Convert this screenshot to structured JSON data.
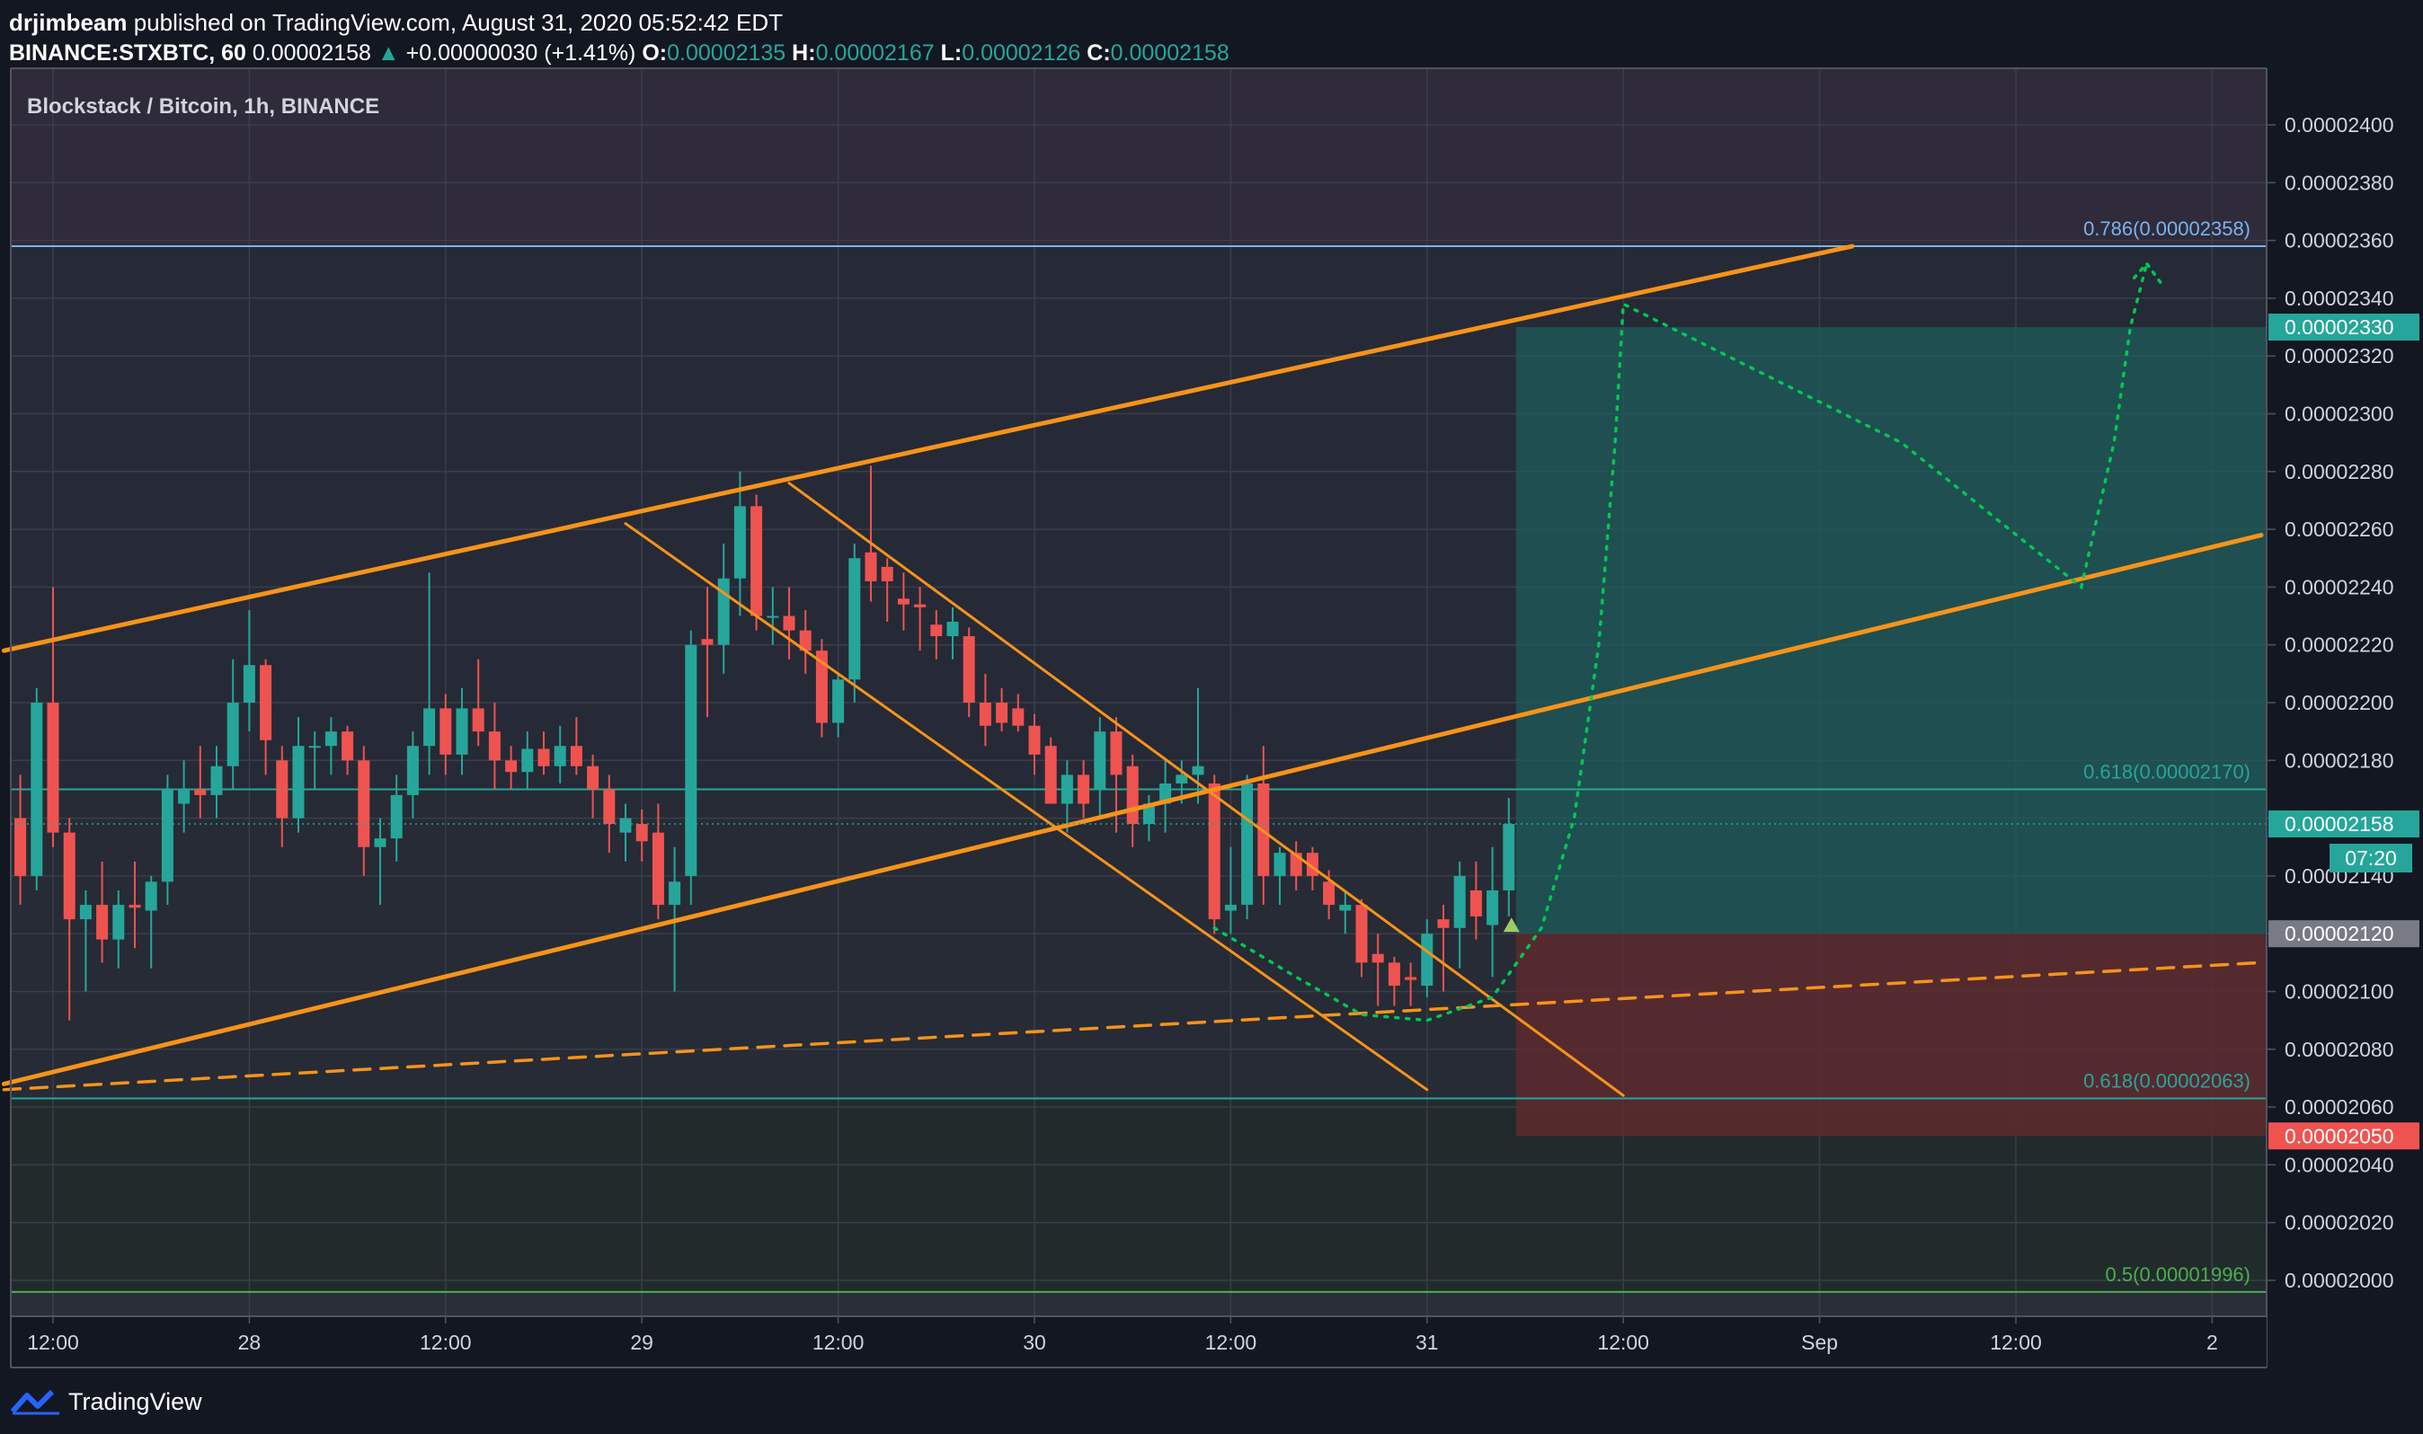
{
  "header": {
    "author": "drjimbeam",
    "published": "published on TradingView.com, August 31, 2020 05:52:42 EDT",
    "symbol": "BINANCE:STXBTC, 60",
    "last": "0.00002158",
    "change_arrow": "▲",
    "change": "+0.00000030 (+1.41%)",
    "o_label": "O:",
    "o": "0.00002135",
    "h_label": "H:",
    "h": "0.00002167",
    "l_label": "L:",
    "l": "0.00002126",
    "c_label": "C:",
    "c": "0.00002158"
  },
  "footer": {
    "brand": "TradingView"
  },
  "colors": {
    "background": "#131722",
    "panel": "#1e222d",
    "up": "#26a69a",
    "down": "#ef5350",
    "trendline": "#f7931a",
    "target": "#00c853",
    "fib_blue": "#7ab3ef",
    "fib_teal": "#26a69a",
    "fib_green": "#4caf50",
    "profit_zone": "#1e5c5a",
    "loss_zone": "#5d2a2e"
  },
  "chart_data": {
    "type": "candlestick",
    "title": "Blockstack / Bitcoin, 1h, BINANCE",
    "ylim": [
      1.992e-05,
      2.418e-05
    ],
    "y_ticks": [
      "0.00002400",
      "0.00002380",
      "0.00002360",
      "0.00002340",
      "0.00002320",
      "0.00002300",
      "0.00002280",
      "0.00002260",
      "0.00002240",
      "0.00002220",
      "0.00002200",
      "0.00002180",
      "0.00002160",
      "0.00002140",
      "0.00002120",
      "0.00002100",
      "0.00002080",
      "0.00002060",
      "0.00002040",
      "0.00002020",
      "0.00002000"
    ],
    "x_ticks": [
      {
        "label": "12:00",
        "h": 0
      },
      {
        "label": "28",
        "h": 12
      },
      {
        "label": "12:00",
        "h": 24
      },
      {
        "label": "29",
        "h": 36
      },
      {
        "label": "12:00",
        "h": 48
      },
      {
        "label": "30",
        "h": 60
      },
      {
        "label": "12:00",
        "h": 72
      },
      {
        "label": "31",
        "h": 84
      },
      {
        "label": "12:00",
        "h": 96
      },
      {
        "label": "Sep",
        "h": 108
      },
      {
        "label": "12:00",
        "h": 120
      },
      {
        "label": "2",
        "h": 132
      }
    ],
    "x_axis": "hours since 27 Aug 12:00",
    "candles": [
      {
        "h": -2,
        "o": 2.16e-05,
        "hi": 2.175e-05,
        "lo": 2.13e-05,
        "c": 2.14e-05
      },
      {
        "h": -1,
        "o": 2.14e-05,
        "hi": 2.205e-05,
        "lo": 2.135e-05,
        "c": 2.2e-05
      },
      {
        "h": 0,
        "o": 2.2e-05,
        "hi": 2.24e-05,
        "lo": 2.15e-05,
        "c": 2.155e-05
      },
      {
        "h": 1,
        "o": 2.155e-05,
        "hi": 2.16e-05,
        "lo": 2.09e-05,
        "c": 2.125e-05
      },
      {
        "h": 2,
        "o": 2.125e-05,
        "hi": 2.135e-05,
        "lo": 2.1e-05,
        "c": 2.13e-05
      },
      {
        "h": 3,
        "o": 2.13e-05,
        "hi": 2.145e-05,
        "lo": 2.11e-05,
        "c": 2.118e-05
      },
      {
        "h": 4,
        "o": 2.118e-05,
        "hi": 2.135e-05,
        "lo": 2.108e-05,
        "c": 2.13e-05
      },
      {
        "h": 5,
        "o": 2.13e-05,
        "hi": 2.145e-05,
        "lo": 2.115e-05,
        "c": 2.129e-05
      },
      {
        "h": 6,
        "o": 2.128e-05,
        "hi": 2.14e-05,
        "lo": 2.108e-05,
        "c": 2.138e-05
      },
      {
        "h": 7,
        "o": 2.138e-05,
        "hi": 2.175e-05,
        "lo": 2.13e-05,
        "c": 2.17e-05
      },
      {
        "h": 8,
        "o": 2.165e-05,
        "hi": 2.18e-05,
        "lo": 2.155e-05,
        "c": 2.17e-05
      },
      {
        "h": 9,
        "o": 2.17e-05,
        "hi": 2.185e-05,
        "lo": 2.16e-05,
        "c": 2.168e-05
      },
      {
        "h": 10,
        "o": 2.168e-05,
        "hi": 2.185e-05,
        "lo": 2.16e-05,
        "c": 2.178e-05
      },
      {
        "h": 11,
        "o": 2.178e-05,
        "hi": 2.215e-05,
        "lo": 2.17e-05,
        "c": 2.2e-05
      },
      {
        "h": 12,
        "o": 2.2e-05,
        "hi": 2.232e-05,
        "lo": 2.19e-05,
        "c": 2.213e-05
      },
      {
        "h": 13,
        "o": 2.213e-05,
        "hi": 2.215e-05,
        "lo": 2.175e-05,
        "c": 2.187e-05
      },
      {
        "h": 14,
        "o": 2.18e-05,
        "hi": 2.185e-05,
        "lo": 2.15e-05,
        "c": 2.16e-05
      },
      {
        "h": 15,
        "o": 2.16e-05,
        "hi": 2.195e-05,
        "lo": 2.155e-05,
        "c": 2.185e-05
      },
      {
        "h": 16,
        "o": 2.185e-05,
        "hi": 2.19e-05,
        "lo": 2.17e-05,
        "c": 2.185e-05
      },
      {
        "h": 17,
        "o": 2.185e-05,
        "hi": 2.195e-05,
        "lo": 2.175e-05,
        "c": 2.19e-05
      },
      {
        "h": 18,
        "o": 2.19e-05,
        "hi": 2.192e-05,
        "lo": 2.175e-05,
        "c": 2.18e-05
      },
      {
        "h": 19,
        "o": 2.18e-05,
        "hi": 2.185e-05,
        "lo": 2.14e-05,
        "c": 2.15e-05
      },
      {
        "h": 20,
        "o": 2.15e-05,
        "hi": 2.16e-05,
        "lo": 2.13e-05,
        "c": 2.153e-05
      },
      {
        "h": 21,
        "o": 2.153e-05,
        "hi": 2.175e-05,
        "lo": 2.145e-05,
        "c": 2.168e-05
      },
      {
        "h": 22,
        "o": 2.168e-05,
        "hi": 2.19e-05,
        "lo": 2.16e-05,
        "c": 2.185e-05
      },
      {
        "h": 23,
        "o": 2.185e-05,
        "hi": 2.245e-05,
        "lo": 2.175e-05,
        "c": 2.198e-05
      },
      {
        "h": 24,
        "o": 2.198e-05,
        "hi": 2.203e-05,
        "lo": 2.175e-05,
        "c": 2.182e-05
      },
      {
        "h": 25,
        "o": 2.182e-05,
        "hi": 2.205e-05,
        "lo": 2.175e-05,
        "c": 2.198e-05
      },
      {
        "h": 26,
        "o": 2.198e-05,
        "hi": 2.215e-05,
        "lo": 2.185e-05,
        "c": 2.19e-05
      },
      {
        "h": 27,
        "o": 2.19e-05,
        "hi": 2.2e-05,
        "lo": 2.17e-05,
        "c": 2.18e-05
      },
      {
        "h": 28,
        "o": 2.18e-05,
        "hi": 2.185e-05,
        "lo": 2.17e-05,
        "c": 2.176e-05
      },
      {
        "h": 29,
        "o": 2.176e-05,
        "hi": 2.19e-05,
        "lo": 2.17e-05,
        "c": 2.184e-05
      },
      {
        "h": 30,
        "o": 2.184e-05,
        "hi": 2.19e-05,
        "lo": 2.175e-05,
        "c": 2.178e-05
      },
      {
        "h": 31,
        "o": 2.178e-05,
        "hi": 2.192e-05,
        "lo": 2.172e-05,
        "c": 2.185e-05
      },
      {
        "h": 32,
        "o": 2.185e-05,
        "hi": 2.195e-05,
        "lo": 2.175e-05,
        "c": 2.178e-05
      },
      {
        "h": 33,
        "o": 2.178e-05,
        "hi": 2.182e-05,
        "lo": 2.16e-05,
        "c": 2.17e-05
      },
      {
        "h": 34,
        "o": 2.17e-05,
        "hi": 2.175e-05,
        "lo": 2.148e-05,
        "c": 2.158e-05
      },
      {
        "h": 35,
        "o": 2.155e-05,
        "hi": 2.165e-05,
        "lo": 2.145e-05,
        "c": 2.16e-05
      },
      {
        "h": 36,
        "o": 2.158e-05,
        "hi": 2.163e-05,
        "lo": 2.145e-05,
        "c": 2.152e-05
      },
      {
        "h": 37,
        "o": 2.155e-05,
        "hi": 2.165e-05,
        "lo": 2.125e-05,
        "c": 2.13e-05
      },
      {
        "h": 38,
        "o": 2.13e-05,
        "hi": 2.15e-05,
        "lo": 2.1e-05,
        "c": 2.138e-05
      },
      {
        "h": 39,
        "o": 2.14e-05,
        "hi": 2.225e-05,
        "lo": 2.13e-05,
        "c": 2.22e-05
      },
      {
        "h": 40,
        "o": 2.222e-05,
        "hi": 2.24e-05,
        "lo": 2.195e-05,
        "c": 2.22e-05
      },
      {
        "h": 41,
        "o": 2.22e-05,
        "hi": 2.255e-05,
        "lo": 2.21e-05,
        "c": 2.243e-05
      },
      {
        "h": 42,
        "o": 2.243e-05,
        "hi": 2.28e-05,
        "lo": 2.23e-05,
        "c": 2.268e-05
      },
      {
        "h": 43,
        "o": 2.268e-05,
        "hi": 2.272e-05,
        "lo": 2.225e-05,
        "c": 2.23e-05
      },
      {
        "h": 44,
        "o": 2.23e-05,
        "hi": 2.24e-05,
        "lo": 2.22e-05,
        "c": 2.23e-05
      },
      {
        "h": 45,
        "o": 2.23e-05,
        "hi": 2.24e-05,
        "lo": 2.215e-05,
        "c": 2.225e-05
      },
      {
        "h": 46,
        "o": 2.225e-05,
        "hi": 2.232e-05,
        "lo": 2.21e-05,
        "c": 2.218e-05
      },
      {
        "h": 47,
        "o": 2.218e-05,
        "hi": 2.222e-05,
        "lo": 2.188e-05,
        "c": 2.193e-05
      },
      {
        "h": 48,
        "o": 2.193e-05,
        "hi": 2.21e-05,
        "lo": 2.188e-05,
        "c": 2.208e-05
      },
      {
        "h": 49,
        "o": 2.208e-05,
        "hi": 2.255e-05,
        "lo": 2.2e-05,
        "c": 2.25e-05
      },
      {
        "h": 50,
        "o": 2.252e-05,
        "hi": 2.282e-05,
        "lo": 2.235e-05,
        "c": 2.242e-05
      },
      {
        "h": 51,
        "o": 2.247e-05,
        "hi": 2.25e-05,
        "lo": 2.228e-05,
        "c": 2.242e-05
      },
      {
        "h": 52,
        "o": 2.236e-05,
        "hi": 2.245e-05,
        "lo": 2.225e-05,
        "c": 2.234e-05
      },
      {
        "h": 53,
        "o": 2.234e-05,
        "hi": 2.24e-05,
        "lo": 2.218e-05,
        "c": 2.233e-05
      },
      {
        "h": 54,
        "o": 2.227e-05,
        "hi": 2.232e-05,
        "lo": 2.215e-05,
        "c": 2.223e-05
      },
      {
        "h": 55,
        "o": 2.223e-05,
        "hi": 2.233e-05,
        "lo": 2.215e-05,
        "c": 2.228e-05
      },
      {
        "h": 56,
        "o": 2.223e-05,
        "hi": 2.226e-05,
        "lo": 2.195e-05,
        "c": 2.2e-05
      },
      {
        "h": 57,
        "o": 2.2e-05,
        "hi": 2.21e-05,
        "lo": 2.185e-05,
        "c": 2.192e-05
      },
      {
        "h": 58,
        "o": 2.2e-05,
        "hi": 2.205e-05,
        "lo": 2.19e-05,
        "c": 2.193e-05
      },
      {
        "h": 59,
        "o": 2.198e-05,
        "hi": 2.203e-05,
        "lo": 2.19e-05,
        "c": 2.192e-05
      },
      {
        "h": 60,
        "o": 2.192e-05,
        "hi": 2.196e-05,
        "lo": 2.175e-05,
        "c": 2.182e-05
      },
      {
        "h": 61,
        "o": 2.185e-05,
        "hi": 2.188e-05,
        "lo": 2.17e-05,
        "c": 2.165e-05
      },
      {
        "h": 62,
        "o": 2.165e-05,
        "hi": 2.18e-05,
        "lo": 2.155e-05,
        "c": 2.175e-05
      },
      {
        "h": 63,
        "o": 2.175e-05,
        "hi": 2.18e-05,
        "lo": 2.16e-05,
        "c": 2.165e-05
      },
      {
        "h": 64,
        "o": 2.17e-05,
        "hi": 2.195e-05,
        "lo": 2.16e-05,
        "c": 2.19e-05
      },
      {
        "h": 65,
        "o": 2.19e-05,
        "hi": 2.195e-05,
        "lo": 2.155e-05,
        "c": 2.175e-05
      },
      {
        "h": 66,
        "o": 2.178e-05,
        "hi": 2.182e-05,
        "lo": 2.15e-05,
        "c": 2.158e-05
      },
      {
        "h": 67,
        "o": 2.158e-05,
        "hi": 2.168e-05,
        "lo": 2.152e-05,
        "c": 2.165e-05
      },
      {
        "h": 68,
        "o": 2.165e-05,
        "hi": 2.18e-05,
        "lo": 2.155e-05,
        "c": 2.172e-05
      },
      {
        "h": 69,
        "o": 2.172e-05,
        "hi": 2.18e-05,
        "lo": 2.165e-05,
        "c": 2.175e-05
      },
      {
        "h": 70,
        "o": 2.175e-05,
        "hi": 2.205e-05,
        "lo": 2.165e-05,
        "c": 2.178e-05
      },
      {
        "h": 71,
        "o": 2.172e-05,
        "hi": 2.175e-05,
        "lo": 2.12e-05,
        "c": 2.125e-05
      },
      {
        "h": 72,
        "o": 2.128e-05,
        "hi": 2.15e-05,
        "lo": 2.12e-05,
        "c": 2.13e-05
      },
      {
        "h": 73,
        "o": 2.13e-05,
        "hi": 2.175e-05,
        "lo": 2.125e-05,
        "c": 2.172e-05
      },
      {
        "h": 74,
        "o": 2.172e-05,
        "hi": 2.185e-05,
        "lo": 2.13e-05,
        "c": 2.14e-05
      },
      {
        "h": 75,
        "o": 2.14e-05,
        "hi": 2.15e-05,
        "lo": 2.13e-05,
        "c": 2.148e-05
      },
      {
        "h": 76,
        "o": 2.148e-05,
        "hi": 2.152e-05,
        "lo": 2.135e-05,
        "c": 2.14e-05
      },
      {
        "h": 77,
        "o": 2.148e-05,
        "hi": 2.15e-05,
        "lo": 2.135e-05,
        "c": 2.14e-05
      },
      {
        "h": 78,
        "o": 2.138e-05,
        "hi": 2.142e-05,
        "lo": 2.125e-05,
        "c": 2.13e-05
      },
      {
        "h": 79,
        "o": 2.128e-05,
        "hi": 2.135e-05,
        "lo": 2.12e-05,
        "c": 2.13e-05
      },
      {
        "h": 80,
        "o": 2.13e-05,
        "hi": 2.132e-05,
        "lo": 2.105e-05,
        "c": 2.11e-05
      },
      {
        "h": 81,
        "o": 2.113e-05,
        "hi": 2.12e-05,
        "lo": 2.095e-05,
        "c": 2.11e-05
      },
      {
        "h": 82,
        "o": 2.11e-05,
        "hi": 2.112e-05,
        "lo": 2.095e-05,
        "c": 2.102e-05
      },
      {
        "h": 83,
        "o": 2.105e-05,
        "hi": 2.11e-05,
        "lo": 2.095e-05,
        "c": 2.104e-05
      },
      {
        "h": 84,
        "o": 2.102e-05,
        "hi": 2.125e-05,
        "lo": 2.098e-05,
        "c": 2.12e-05
      },
      {
        "h": 85,
        "o": 2.125e-05,
        "hi": 2.13e-05,
        "lo": 2.1e-05,
        "c": 2.122e-05
      },
      {
        "h": 86,
        "o": 2.122e-05,
        "hi": 2.145e-05,
        "lo": 2.108e-05,
        "c": 2.14e-05
      },
      {
        "h": 87,
        "o": 2.135e-05,
        "hi": 2.145e-05,
        "lo": 2.118e-05,
        "c": 2.126e-05
      },
      {
        "h": 88,
        "o": 2.123e-05,
        "hi": 2.15e-05,
        "lo": 2.105e-05,
        "c": 2.135e-05
      },
      {
        "h": 89,
        "o": 2.135e-05,
        "hi": 2.167e-05,
        "lo": 2.126e-05,
        "c": 2.158e-05
      }
    ],
    "fib_levels": [
      {
        "label": "0.786(0.00002358)",
        "value": 2.358e-05,
        "color": "#7ab3ef"
      },
      {
        "label": "0.618(0.00002170)",
        "value": 2.17e-05,
        "color": "#26a69a"
      },
      {
        "label": "0.618(0.00002063)",
        "value": 2.063e-05,
        "color": "#26a69a"
      },
      {
        "label": "0.5(0.00001996)",
        "value": 1.996e-05,
        "color": "#4caf50"
      }
    ],
    "position": {
      "entry": 2.12e-05,
      "target": 2.33e-05,
      "stop": 2.05e-05,
      "start_h": 89,
      "end_h": 135
    },
    "trendlines": [
      {
        "h1": -3,
        "y1": 2.218e-05,
        "h2": 110,
        "y2": 2.358e-05,
        "style": "solid"
      },
      {
        "h1": -3,
        "y1": 2.068e-05,
        "h2": 135,
        "y2": 2.258e-05,
        "style": "solid"
      },
      {
        "h1": -3,
        "y1": 2.066e-05,
        "h2": 135,
        "y2": 2.11e-05,
        "style": "dashed"
      },
      {
        "h1": 35,
        "y1": 2.262e-05,
        "h2": 84,
        "y2": 2.066e-05,
        "style": "solid"
      },
      {
        "h1": 45,
        "y1": 2.276e-05,
        "h2": 96,
        "y2": 2.064e-05,
        "style": "solid"
      }
    ],
    "projection": [
      [
        71,
        2.122e-05
      ],
      [
        76,
        2.105e-05
      ],
      [
        80,
        2.092e-05
      ],
      [
        84,
        2.09e-05
      ],
      [
        88,
        2.098e-05
      ],
      [
        91,
        2.122e-05
      ],
      [
        93,
        2.16e-05
      ],
      [
        94.5,
        2.22e-05
      ],
      [
        95.5,
        2.29e-05
      ],
      [
        96,
        2.338e-05
      ],
      [
        113,
        2.29e-05
      ],
      [
        124,
        2.24e-05
      ],
      [
        126,
        2.29e-05
      ],
      [
        127,
        2.33e-05
      ],
      [
        128,
        2.352e-05
      ]
    ],
    "price_labels": [
      {
        "text": "0.00002330",
        "value": 2.33e-05,
        "bg": "#26a69a"
      },
      {
        "text": "0.00002158",
        "value": 2.158e-05,
        "bg": "#26a69a"
      },
      {
        "text": "0.00002120",
        "value": 2.12e-05,
        "bg": "#787b86"
      },
      {
        "text": "0.00002050",
        "value": 2.05e-05,
        "bg": "#ef5350"
      }
    ],
    "countdown": "07:20"
  }
}
